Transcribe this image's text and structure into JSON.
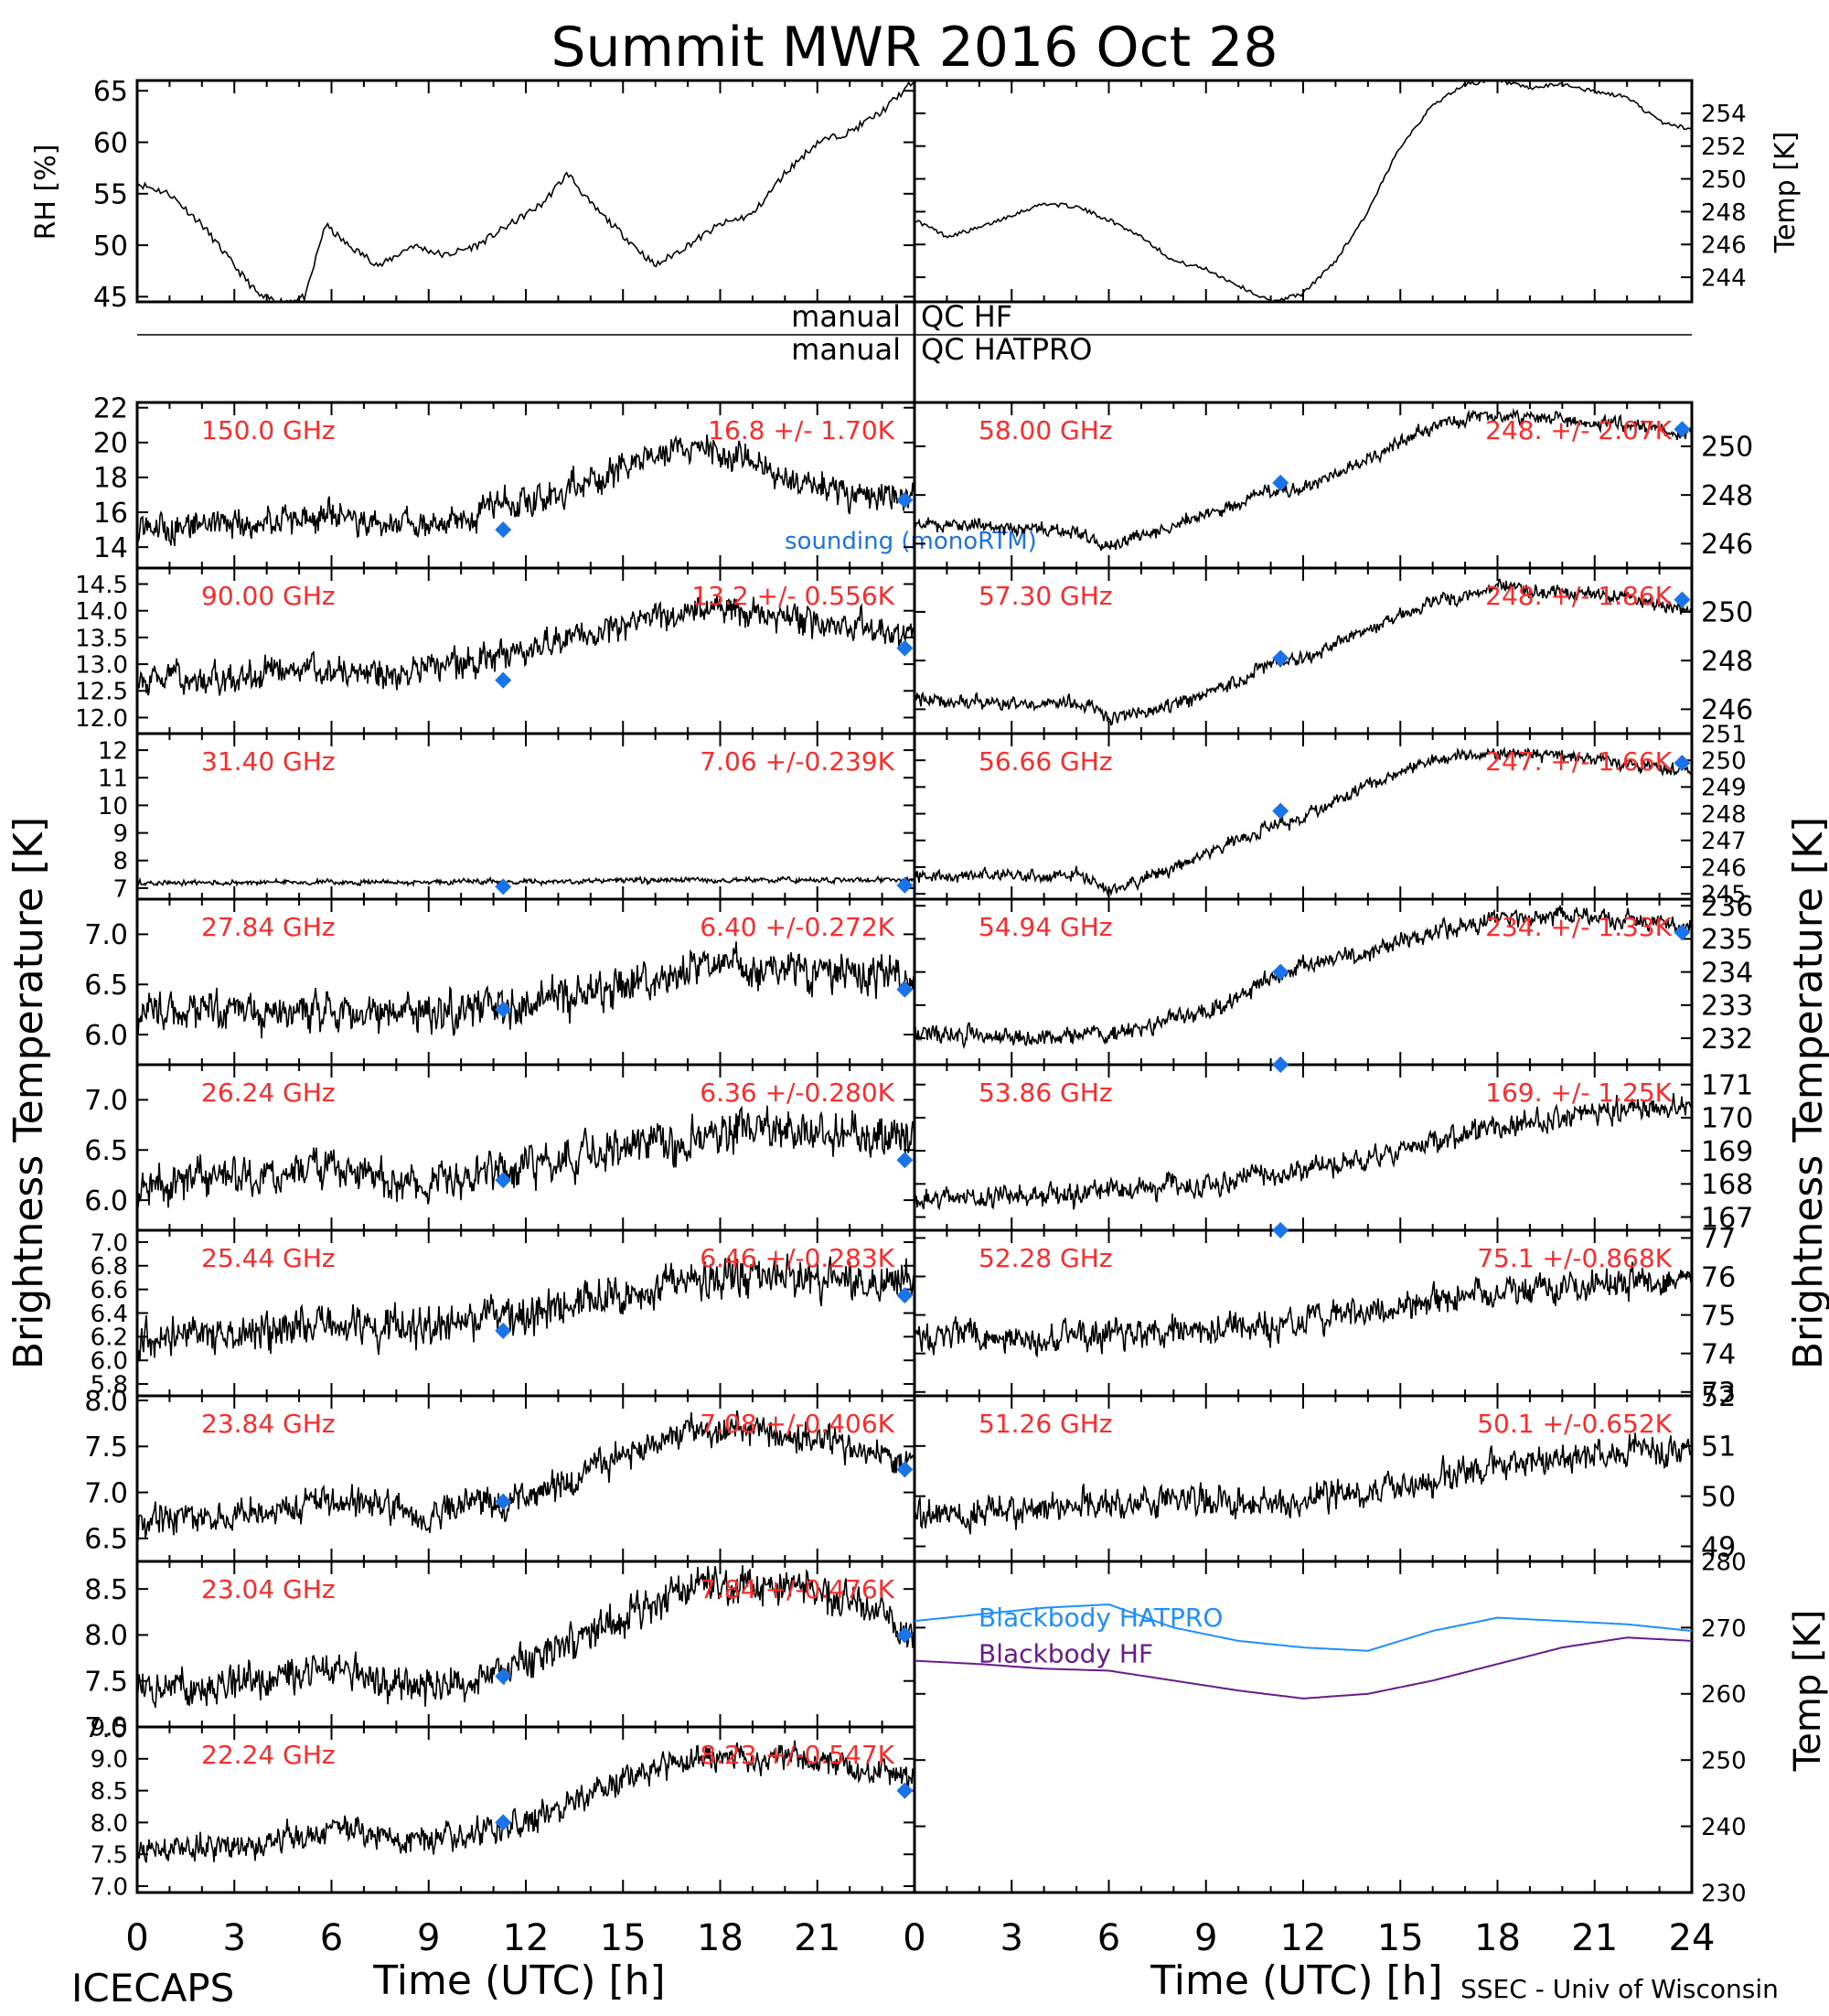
{
  "title": "Summit MWR 2016 Oct 28",
  "footer_left": "ICECAPS",
  "footer_right": "SSEC - Univ of Wisconsin",
  "xaxis": {
    "label": "Time (UTC) [h]",
    "ticks": [
      "0",
      "3",
      "6",
      "9",
      "12",
      "15",
      "18",
      "21"
    ],
    "ticks_right": [
      "0",
      "3",
      "6",
      "9",
      "12",
      "15",
      "18",
      "21",
      "24"
    ],
    "range": [
      0,
      24
    ]
  },
  "left_ylabel": "Brightness Temperature [K]",
  "right_ylabel": "Brightness Temperature [K]",
  "qc": {
    "label1": "manual",
    "value1": "QC HF",
    "label2": "manual",
    "value2": "QC HATPRO"
  },
  "sounding_label": "sounding (monoRTM)",
  "colors": {
    "data": "#000000",
    "label": "#ff2a2a",
    "sounding": "#1a73e8",
    "bb_hatpro": "#1e8fff",
    "bb_hf": "#6a1a8a"
  },
  "chart_data": [
    {
      "id": "rh",
      "type": "line",
      "ylabel": "RH [%]",
      "ylim": [
        44.5,
        66
      ],
      "yticks": [
        "45",
        "50",
        "55",
        "60",
        "65"
      ],
      "x": [
        0,
        1,
        2,
        3,
        3.8,
        4.5,
        5.2,
        5.8,
        6.5,
        7.5,
        8.5,
        9.5,
        10.5,
        11.5,
        12.5,
        13.3,
        14,
        15,
        16,
        17,
        18,
        19,
        20,
        21,
        22,
        23,
        24
      ],
      "y": [
        56,
        55,
        52,
        48,
        45,
        44.5,
        45,
        52,
        50,
        48,
        50,
        49,
        50,
        52,
        54,
        57,
        54,
        51,
        48,
        50,
        52,
        53,
        57,
        60,
        61,
        63,
        66
      ]
    },
    {
      "id": "temp",
      "type": "line",
      "ylabel": "Temp [K]",
      "ylim": [
        242.5,
        256
      ],
      "yticks": [
        "244",
        "246",
        "248",
        "250",
        "252",
        "254"
      ],
      "x": [
        0,
        1,
        2,
        3,
        4,
        5,
        6,
        7,
        8,
        9,
        10,
        11,
        12,
        13,
        14,
        15,
        16,
        17,
        18,
        19,
        20,
        21,
        22,
        23,
        24
      ],
      "y": [
        247.5,
        246.5,
        247,
        247.8,
        248.5,
        248.3,
        247.5,
        246.5,
        245,
        244.5,
        243.5,
        242.5,
        243,
        245,
        248,
        252,
        254.5,
        255.8,
        256,
        255.5,
        255.8,
        255.3,
        255,
        253.5,
        253
      ]
    },
    {
      "id": "f150",
      "type": "line",
      "column": "left",
      "row": 0,
      "freq_label": "150.0 GHz",
      "stats_label": "16.8 +/- 1.70K",
      "ylim": [
        12.8,
        22.3
      ],
      "yticks": [
        "14",
        "16",
        "18",
        "20",
        "22"
      ],
      "noise": 1.1,
      "x": [
        0,
        2,
        4,
        6,
        8,
        10,
        12,
        14,
        16,
        17,
        18,
        20,
        22,
        24
      ],
      "y": [
        15,
        15.2,
        15.5,
        15.7,
        15.3,
        15.6,
        16.5,
        17.8,
        19.2,
        19.8,
        19.5,
        18,
        17,
        17
      ],
      "sounding": [
        {
          "x": 11.3,
          "y": 15
        },
        {
          "x": 23.7,
          "y": 16.7
        }
      ]
    },
    {
      "id": "f90",
      "type": "line",
      "column": "left",
      "row": 1,
      "freq_label": "90.00 GHz",
      "stats_label": "13.2 +/- 0.556K",
      "ylim": [
        11.7,
        14.8
      ],
      "yticks": [
        "12.0",
        "12.5",
        "13.0",
        "13.5",
        "14.0",
        "14.5"
      ],
      "noise": 0.35,
      "x": [
        0,
        2,
        4,
        6,
        8,
        10,
        12,
        14,
        16,
        18,
        20,
        22,
        24
      ],
      "y": [
        12.8,
        12.7,
        12.8,
        12.9,
        12.8,
        13,
        13.3,
        13.6,
        13.9,
        14,
        13.9,
        13.7,
        13.6
      ],
      "sounding": [
        {
          "x": 11.3,
          "y": 12.7
        },
        {
          "x": 23.7,
          "y": 13.3
        }
      ]
    },
    {
      "id": "f3140",
      "type": "line",
      "column": "left",
      "row": 2,
      "freq_label": "31.40 GHz",
      "stats_label": "7.06 +/-0.239K",
      "ylim": [
        6.6,
        12.6
      ],
      "yticks": [
        "7",
        "8",
        "9",
        "10",
        "11",
        "12"
      ],
      "noise": 0.12,
      "x": [
        0,
        6,
        12,
        18,
        24
      ],
      "y": [
        7.2,
        7.2,
        7.25,
        7.3,
        7.3
      ],
      "sounding": [
        {
          "x": 11.3,
          "y": 7.05
        },
        {
          "x": 23.7,
          "y": 7.1
        }
      ]
    },
    {
      "id": "f2784",
      "type": "line",
      "column": "left",
      "row": 3,
      "freq_label": "27.84 GHz",
      "stats_label": "6.40 +/-0.272K",
      "ylim": [
        5.7,
        7.35
      ],
      "yticks": [
        "6.0",
        "6.5",
        "7.0"
      ],
      "noise": 0.25,
      "x": [
        0,
        3,
        6,
        9,
        12,
        15,
        18,
        21,
        24
      ],
      "y": [
        6.2,
        6.25,
        6.25,
        6.2,
        6.3,
        6.5,
        6.7,
        6.6,
        6.6
      ],
      "sounding": [
        {
          "x": 11.3,
          "y": 6.25
        },
        {
          "x": 23.7,
          "y": 6.45
        }
      ]
    },
    {
      "id": "f2624",
      "type": "line",
      "column": "left",
      "row": 4,
      "freq_label": "26.24 GHz",
      "stats_label": "6.36 +/-0.280K",
      "ylim": [
        5.7,
        7.35
      ],
      "yticks": [
        "6.0",
        "6.5",
        "7.0"
      ],
      "noise": 0.25,
      "x": [
        0,
        3,
        6,
        9,
        12,
        15,
        18,
        21,
        24
      ],
      "y": [
        6.15,
        6.25,
        6.3,
        6.15,
        6.3,
        6.5,
        6.7,
        6.65,
        6.6
      ],
      "sounding": [
        {
          "x": 11.3,
          "y": 6.2
        },
        {
          "x": 23.7,
          "y": 6.4
        }
      ]
    },
    {
      "id": "f2544",
      "type": "line",
      "column": "left",
      "row": 5,
      "freq_label": "25.44 GHz",
      "stats_label": "6.46 +/-0.283K",
      "ylim": [
        5.7,
        7.1
      ],
      "yticks": [
        "5.8",
        "6.0",
        "6.2",
        "6.4",
        "6.6",
        "6.8",
        "7.0"
      ],
      "noise": 0.22,
      "x": [
        0,
        3,
        6,
        9,
        12,
        15,
        18,
        21,
        24
      ],
      "y": [
        6.2,
        6.2,
        6.3,
        6.3,
        6.4,
        6.55,
        6.7,
        6.7,
        6.65
      ],
      "sounding": [
        {
          "x": 11.3,
          "y": 6.25
        },
        {
          "x": 23.7,
          "y": 6.55
        }
      ]
    },
    {
      "id": "f2384",
      "type": "line",
      "column": "left",
      "row": 6,
      "freq_label": "23.84 GHz",
      "stats_label": "7.08 +/-0.406K",
      "ylim": [
        6.25,
        8.05
      ],
      "yticks": [
        "6.5",
        "7.0",
        "7.5",
        "8.0"
      ],
      "noise": 0.22,
      "x": [
        0,
        3,
        6,
        9,
        12,
        15,
        17,
        19,
        21,
        24
      ],
      "y": [
        6.7,
        6.75,
        6.9,
        6.75,
        6.95,
        7.4,
        7.7,
        7.65,
        7.6,
        7.3
      ],
      "sounding": [
        {
          "x": 11.3,
          "y": 6.9
        },
        {
          "x": 23.7,
          "y": 7.25
        }
      ]
    },
    {
      "id": "f2304",
      "type": "line",
      "column": "left",
      "row": 7,
      "freq_label": "23.04 GHz",
      "stats_label": "7.84 +/-0.476K",
      "ylim": [
        7.0,
        8.8
      ],
      "yticks": [
        "7.0",
        "7.5",
        "8.0",
        "8.5"
      ],
      "noise": 0.25,
      "x": [
        0,
        3,
        6,
        9,
        12,
        15,
        17,
        19,
        21,
        24
      ],
      "y": [
        7.45,
        7.45,
        7.6,
        7.4,
        7.7,
        8.2,
        8.55,
        8.5,
        8.5,
        8.0
      ],
      "sounding": [
        {
          "x": 11.3,
          "y": 7.55
        },
        {
          "x": 23.7,
          "y": 8.0
        }
      ]
    },
    {
      "id": "f2224",
      "type": "line",
      "column": "left",
      "row": 8,
      "freq_label": "22.24 GHz",
      "stats_label": "8.23 +/-0.547K",
      "ylim": [
        6.9,
        9.5
      ],
      "yticks": [
        "7.0",
        "7.5",
        "8.0",
        "8.5",
        "9.0",
        "9.5"
      ],
      "noise": 0.28,
      "x": [
        0,
        3,
        6,
        9,
        12,
        15,
        17,
        19,
        21,
        24
      ],
      "y": [
        7.6,
        7.6,
        7.9,
        7.7,
        8.0,
        8.7,
        9.0,
        9.0,
        9.0,
        8.6
      ],
      "sounding": [
        {
          "x": 11.3,
          "y": 8.0
        },
        {
          "x": 23.7,
          "y": 8.5
        }
      ]
    },
    {
      "id": "f5800",
      "type": "line",
      "column": "right",
      "row": 0,
      "freq_label": "58.00 GHz",
      "stats_label": "248. +/- 2.07K",
      "ylim": [
        245,
        251.8
      ],
      "yticks": [
        "246",
        "248",
        "250"
      ],
      "noise": 0.35,
      "x": [
        0,
        2,
        4,
        5,
        6,
        8,
        10,
        11,
        12,
        14,
        16,
        18,
        20,
        22,
        24
      ],
      "y": [
        246.8,
        246.7,
        246.6,
        246.5,
        245.8,
        246.8,
        247.6,
        248.2,
        248.2,
        249.5,
        250.8,
        251.3,
        251.1,
        250.9,
        250.5
      ],
      "sounding": [
        {
          "x": 11.3,
          "y": 248.5
        },
        {
          "x": 23.7,
          "y": 250.7
        }
      ]
    },
    {
      "id": "f5730",
      "type": "line",
      "column": "right",
      "row": 1,
      "freq_label": "57.30 GHz",
      "stats_label": "248. +/- 1.86K",
      "ylim": [
        245,
        251.8
      ],
      "yticks": [
        "246",
        "248",
        "250"
      ],
      "noise": 0.35,
      "x": [
        0,
        2,
        4,
        5,
        6,
        8,
        10,
        11,
        12,
        14,
        16,
        18,
        20,
        22,
        24
      ],
      "y": [
        246.4,
        246.3,
        246.2,
        246.3,
        245.6,
        246.2,
        247.1,
        247.9,
        248,
        249.3,
        250.4,
        251,
        250.8,
        250.6,
        250
      ],
      "sounding": [
        {
          "x": 11.3,
          "y": 248.1
        },
        {
          "x": 23.7,
          "y": 250.5
        }
      ]
    },
    {
      "id": "f5666",
      "type": "line",
      "column": "right",
      "row": 2,
      "freq_label": "56.66 GHz",
      "stats_label": "247. +/- 1.66K",
      "ylim": [
        244.8,
        251
      ],
      "yticks": [
        "245",
        "246",
        "247",
        "248",
        "249",
        "250",
        "251"
      ],
      "noise": 0.3,
      "x": [
        0,
        2,
        4,
        5,
        6,
        8,
        10,
        11,
        12,
        14,
        16,
        18,
        20,
        22,
        24
      ],
      "y": [
        245.7,
        245.7,
        245.6,
        245.8,
        245.1,
        246,
        247,
        247.6,
        247.8,
        249.1,
        250,
        250.3,
        250.2,
        249.9,
        249.6
      ],
      "sounding": [
        {
          "x": 11.3,
          "y": 248.1
        },
        {
          "x": 23.7,
          "y": 249.9
        }
      ]
    },
    {
      "id": "f5494",
      "type": "line",
      "column": "right",
      "row": 3,
      "freq_label": "54.94 GHz",
      "stats_label": "234. +/- 1.33K",
      "ylim": [
        231.2,
        236.2
      ],
      "yticks": [
        "232",
        "233",
        "234",
        "235",
        "236"
      ],
      "noise": 0.35,
      "x": [
        0,
        3,
        6,
        9,
        11,
        12,
        14,
        16,
        18,
        20,
        22,
        24
      ],
      "y": [
        232.2,
        232,
        232.1,
        232.8,
        233.8,
        234.2,
        234.6,
        235.2,
        235.6,
        235.7,
        235.6,
        235.4
      ],
      "sounding": [
        {
          "x": 11.3,
          "y": 234
        },
        {
          "x": 23.7,
          "y": 235.2
        }
      ]
    },
    {
      "id": "f5386",
      "type": "line",
      "column": "right",
      "row": 4,
      "freq_label": "53.86 GHz",
      "stats_label": "169. +/- 1.25K",
      "ylim": [
        166.6,
        171.6
      ],
      "yticks": [
        "167",
        "168",
        "169",
        "170",
        "171"
      ],
      "noise": 0.45,
      "x": [
        0,
        3,
        6,
        9,
        12,
        15,
        18,
        21,
        24
      ],
      "y": [
        167.5,
        167.6,
        167.8,
        168,
        168.4,
        169,
        169.7,
        170.2,
        170.4
      ],
      "sounding": [
        {
          "x": 11.3,
          "y": 171.6
        }
      ]
    },
    {
      "id": "f5228",
      "type": "line",
      "column": "right",
      "row": 5,
      "freq_label": "52.28 GHz",
      "stats_label": "75.1 +/-0.868K",
      "ylim": [
        72.9,
        77.2
      ],
      "yticks": [
        "73",
        "74",
        "75",
        "76",
        "77"
      ],
      "noise": 0.5,
      "x": [
        0,
        3,
        6,
        9,
        12,
        15,
        18,
        21,
        24
      ],
      "y": [
        74.5,
        74.4,
        74.5,
        74.6,
        74.8,
        75.2,
        75.6,
        75.8,
        76
      ],
      "sounding": [
        {
          "x": 11.3,
          "y": 77.2
        }
      ]
    },
    {
      "id": "f5126",
      "type": "line",
      "column": "right",
      "row": 6,
      "freq_label": "51.26 GHz",
      "stats_label": "50.1 +/-0.652K",
      "ylim": [
        48.7,
        52
      ],
      "yticks": [
        "49",
        "50",
        "51",
        "52"
      ],
      "noise": 0.4,
      "x": [
        0,
        3,
        6,
        9,
        12,
        15,
        18,
        21,
        24
      ],
      "y": [
        49.6,
        49.7,
        49.9,
        49.9,
        49.9,
        50.2,
        50.6,
        50.9,
        51
      ],
      "sounding": []
    },
    {
      "id": "blackbody",
      "type": "line",
      "column": "right",
      "row": 7,
      "rowspan": 2,
      "ylabel": "Temp [K]",
      "ylim": [
        230,
        280
      ],
      "yticks": [
        "230",
        "240",
        "250",
        "260",
        "270",
        "280"
      ],
      "x": [
        0,
        2,
        4,
        6,
        8,
        10,
        12,
        14,
        16,
        18,
        20,
        22,
        24
      ],
      "series": [
        {
          "name": "Blackbody HATPRO",
          "values": [
            271,
            272,
            273,
            273.5,
            270,
            268,
            267,
            266.5,
            269.5,
            271.5,
            271,
            270.5,
            269.5
          ]
        },
        {
          "name": "Blackbody HF",
          "values": [
            265,
            264.5,
            263.8,
            263.5,
            262,
            260.5,
            259.3,
            260,
            262,
            264.5,
            267,
            268.5,
            268
          ]
        }
      ]
    }
  ]
}
